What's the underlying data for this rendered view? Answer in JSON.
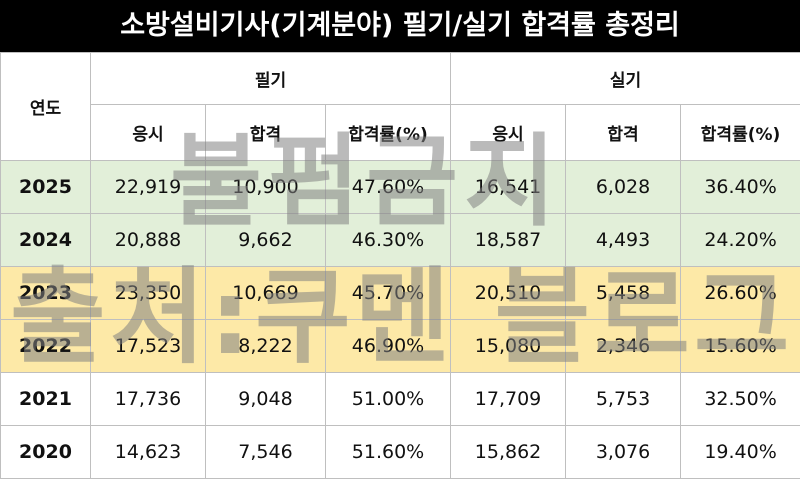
{
  "title": "소방설비기사(기계분야) 필기/실기 합격률 총정리",
  "watermarks": [
    "불펌금지",
    "출처:쿠멘 블로그"
  ],
  "table": {
    "year_header": "연도",
    "groups": [
      "필기",
      "실기"
    ],
    "subheaders": [
      "응시",
      "합격",
      "합격률(%)",
      "응시",
      "합격",
      "합격률(%)"
    ],
    "rows": [
      [
        "2025",
        "22,919",
        "10,900",
        "47.60%",
        "16,541",
        "6,028",
        "36.40%"
      ],
      [
        "2024",
        "20,888",
        "9,662",
        "46.30%",
        "18,587",
        "4,493",
        "24.20%"
      ],
      [
        "2023",
        "23,350",
        "10,669",
        "45.70%",
        "20,510",
        "5,458",
        "26.60%"
      ],
      [
        "2022",
        "17,523",
        "8,222",
        "46.90%",
        "15,080",
        "2,346",
        "15.60%"
      ],
      [
        "2021",
        "17,736",
        "9,048",
        "51.00%",
        "17,709",
        "5,753",
        "32.50%"
      ],
      [
        "2020",
        "14,623",
        "7,546",
        "51.60%",
        "15,862",
        "3,076",
        "19.40%"
      ]
    ]
  }
}
